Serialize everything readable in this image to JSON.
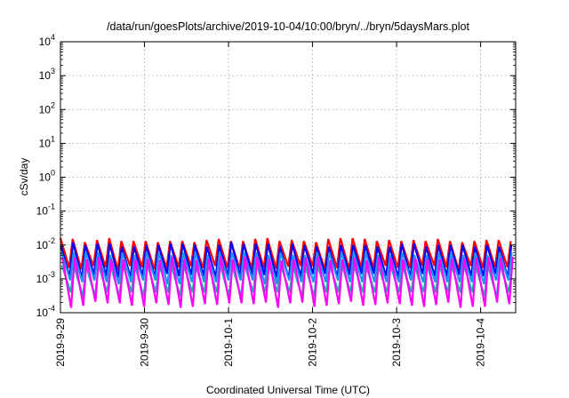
{
  "chart_data": {
    "type": "line",
    "title": "/data/run/goesPlots/archive/2019-10-04/10:00/bryn/../bryn/5daysMars.plot",
    "xlabel": "Coordinated Universal Time (UTC)",
    "ylabel": "cSv/day",
    "yscale": "log",
    "ylim": [
      0.0001,
      10000
    ],
    "xlim": [
      "2019-09-29T00:00",
      "2019-10-04T10:00"
    ],
    "grid": true,
    "legend": "none",
    "x_ticks": [
      "2019-9-29",
      "2019-9-30",
      "2019-10-1",
      "2019-10-2",
      "2019-10-3",
      "2019-10-4"
    ],
    "y_ticks": [
      {
        "base": "10",
        "exp": "-4"
      },
      {
        "base": "10",
        "exp": "-3"
      },
      {
        "base": "10",
        "exp": "-2"
      },
      {
        "base": "10",
        "exp": "-1"
      },
      {
        "base": "10",
        "exp": "0"
      },
      {
        "base": "10",
        "exp": "1"
      },
      {
        "base": "10",
        "exp": "2"
      },
      {
        "base": "10",
        "exp": "3"
      },
      {
        "base": "10",
        "exp": "4"
      }
    ],
    "series": [
      {
        "color": "#ff0000",
        "peaks": [
          0.016,
          0.015,
          0.012,
          0.014,
          0.016,
          0.013,
          0.013,
          0.013,
          0.012,
          0.013,
          0.013,
          0.012,
          0.014,
          0.015,
          0.013,
          0.013,
          0.015,
          0.016,
          0.013,
          0.014,
          0.013,
          0.012,
          0.015,
          0.016,
          0.016,
          0.015,
          0.013,
          0.014,
          0.013,
          0.014,
          0.013,
          0.015,
          0.013,
          0.012,
          0.013,
          0.014,
          0.014,
          0.013
        ],
        "troughs": [
          0.0021,
          0.0019,
          0.0024,
          0.0022,
          0.0018,
          0.0024,
          0.0022,
          0.0019,
          0.0021,
          0.0022,
          0.0024,
          0.0021,
          0.0024,
          0.0021,
          0.002,
          0.002,
          0.0021,
          0.002,
          0.0023,
          0.0024,
          0.0024,
          0.0019,
          0.0021,
          0.0019,
          0.0021,
          0.0021,
          0.0024,
          0.0021,
          0.0021,
          0.0024,
          0.0024,
          0.0022,
          0.0018,
          0.0024,
          0.0021,
          0.0022,
          0.0022
        ]
      },
      {
        "color": "#0000ff",
        "peaks": [
          0.01,
          0.012,
          0.01,
          0.011,
          0.011,
          0.009,
          0.009,
          0.01,
          0.01,
          0.011,
          0.011,
          0.01,
          0.009,
          0.01,
          0.012,
          0.011,
          0.011,
          0.011,
          0.009,
          0.011,
          0.01,
          0.009,
          0.009,
          0.01,
          0.01,
          0.01,
          0.009,
          0.009,
          0.011,
          0.011,
          0.009,
          0.01,
          0.01,
          0.01,
          0.009,
          0.01,
          0.009,
          0.01
        ],
        "troughs": [
          0.0011,
          0.001,
          0.0013,
          0.0012,
          0.0011,
          0.0011,
          0.0012,
          0.0011,
          0.0014,
          0.0012,
          0.0013,
          0.0012,
          0.0011,
          0.0012,
          0.0012,
          0.0013,
          0.0013,
          0.0011,
          0.001,
          0.0011,
          0.0014,
          0.0014,
          0.0011,
          0.0013,
          0.0014,
          0.0014,
          0.0012,
          0.0011,
          0.0011,
          0.0014,
          0.0012,
          0.0012,
          0.0013,
          0.0012,
          0.0012,
          0.0014,
          0.0011
        ]
      },
      {
        "color": "#1e90ff",
        "peaks": [
          0.006,
          0.006,
          0.006,
          0.006,
          0.005,
          0.006,
          0.005,
          0.006,
          0.006,
          0.005,
          0.006,
          0.006,
          0.005,
          0.006,
          0.006,
          0.006,
          0.006,
          0.005,
          0.006,
          0.005,
          0.005,
          0.006,
          0.006,
          0.006,
          0.006,
          0.006,
          0.005,
          0.005,
          0.006,
          0.005,
          0.005,
          0.006,
          0.006,
          0.005,
          0.006,
          0.005,
          0.006,
          0.006
        ],
        "troughs": [
          0.0009,
          0.0008,
          0.0009,
          0.0008,
          0.0007,
          0.0008,
          0.0009,
          0.0009,
          0.0007,
          0.0007,
          0.0008,
          0.0008,
          0.0008,
          0.0009,
          0.0009,
          0.0009,
          0.0007,
          0.0007,
          0.0009,
          0.0008,
          0.0008,
          0.0008,
          0.0009,
          0.0008,
          0.0008,
          0.0008,
          0.0008,
          0.0008,
          0.0009,
          0.0008,
          0.0008,
          0.0008,
          0.0008,
          0.0008,
          0.0007,
          0.0009,
          0.0009
        ]
      },
      {
        "color": "#20b2aa",
        "peaks": [
          0.0025,
          0.0024,
          0.0024,
          0.0025,
          0.0026,
          0.0027,
          0.0025,
          0.0027,
          0.0025,
          0.0024,
          0.0026,
          0.0023,
          0.0027,
          0.0026,
          0.0024,
          0.0027,
          0.0026,
          0.0026,
          0.0024,
          0.0023,
          0.0024,
          0.0025,
          0.0026,
          0.0025,
          0.0025,
          0.0023,
          0.0023,
          0.0024,
          0.0023,
          0.0023,
          0.0025,
          0.0026,
          0.0025,
          0.0026,
          0.0024,
          0.0025,
          0.0025,
          0.0026
        ],
        "troughs": [
          0.0004,
          0.0003,
          0.0003,
          0.0004,
          0.0003,
          0.0004,
          0.0003,
          0.0004,
          0.0004,
          0.0003,
          0.0004,
          0.0004,
          0.0004,
          0.0003,
          0.0003,
          0.0004,
          0.0004,
          0.0004,
          0.0004,
          0.0003,
          0.0003,
          0.0004,
          0.0004,
          0.0004,
          0.0004,
          0.0004,
          0.0004,
          0.0004,
          0.0004,
          0.0004,
          0.0004,
          0.0004,
          0.0004,
          0.0004,
          0.0003,
          0.0003,
          0.0004
        ]
      },
      {
        "color": "#ff00ff",
        "peaks": [
          0.0042,
          0.0043,
          0.0038,
          0.0044,
          0.0037,
          0.0037,
          0.0038,
          0.0039,
          0.0036,
          0.0045,
          0.0038,
          0.0036,
          0.0039,
          0.0045,
          0.0038,
          0.0045,
          0.0044,
          0.0039,
          0.0035,
          0.0038,
          0.0043,
          0.0045,
          0.0036,
          0.0037,
          0.0042,
          0.0036,
          0.0043,
          0.0042,
          0.0037,
          0.0039,
          0.0039,
          0.0038,
          0.004,
          0.0039,
          0.0042,
          0.0044,
          0.0042,
          0.0045
        ],
        "troughs": [
          0.00014,
          0.00016,
          0.00021,
          0.00019,
          0.00019,
          0.00016,
          0.00015,
          0.00019,
          0.00017,
          0.00014,
          0.00015,
          0.00018,
          0.00017,
          0.00019,
          0.00019,
          0.00018,
          0.0002,
          0.00014,
          0.00019,
          0.0002,
          0.00015,
          0.00016,
          0.00018,
          0.00021,
          0.00016,
          0.00017,
          0.00019,
          0.00018,
          0.00016,
          0.00015,
          0.00017,
          0.0002,
          0.00014,
          0.00015,
          0.00015,
          0.0002,
          0.00018
        ]
      }
    ]
  }
}
